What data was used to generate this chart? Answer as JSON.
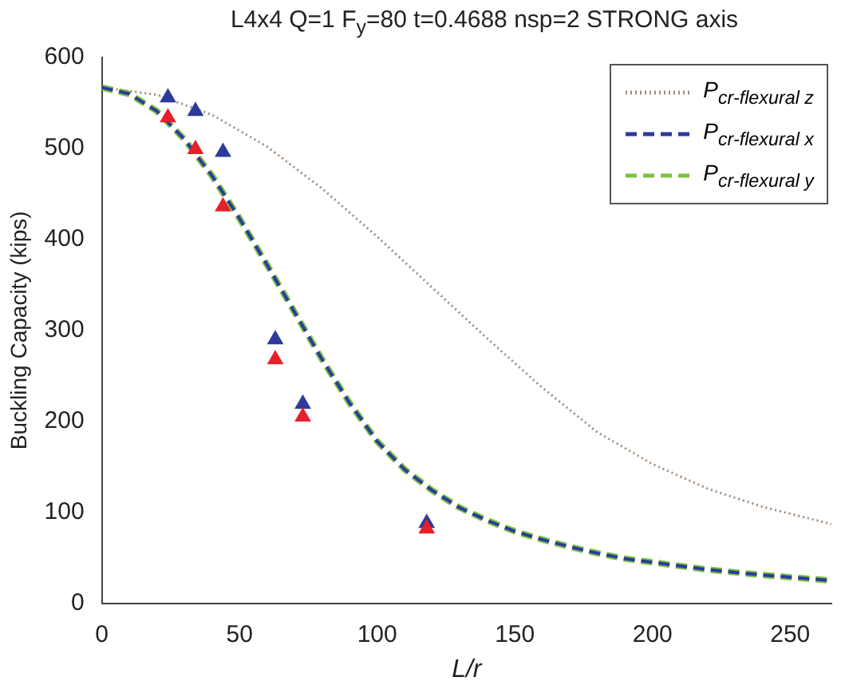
{
  "chart_data": {
    "type": "line",
    "title": "L4x4 Q=1 F$_{y}$=80 t=0.4688 nsp=2 STRONG axis",
    "xlabel": "L/r",
    "ylabel": "Buckling Capacity (kips)",
    "xlim": [
      0,
      265
    ],
    "xticks": [
      0,
      50,
      100,
      150,
      200,
      250
    ],
    "ylim": [
      0,
      600
    ],
    "yticks": [
      0,
      100,
      200,
      300,
      400,
      500,
      600
    ],
    "grid": false,
    "legend": "top right",
    "series": [
      {
        "name": "P$_{cr-flexural z}$",
        "color": "#a08c7c",
        "line_style": "dotted",
        "marker": "none",
        "x": [
          0,
          20,
          40,
          60,
          80,
          100,
          120,
          140,
          160,
          180,
          200,
          220,
          240,
          265
        ],
        "values": [
          567,
          559,
          537,
          502,
          456,
          403,
          347,
          291,
          237,
          188,
          153,
          126,
          106,
          87
        ]
      },
      {
        "name": "P$_{cr-flexural y}$",
        "color": "#7cc242",
        "line_style": "dashed",
        "marker": "none",
        "x": [
          0,
          10,
          20,
          30,
          40,
          50,
          60,
          70,
          80,
          90,
          100,
          110,
          120,
          130,
          140,
          150,
          160,
          170,
          180,
          190,
          200,
          220,
          240,
          265
        ],
        "values": [
          567,
          560,
          541,
          510,
          470,
          423,
          372,
          320,
          268,
          220,
          178,
          147,
          124,
          105,
          91,
          79,
          70,
          62,
          55,
          49,
          45,
          37,
          31,
          25
        ]
      },
      {
        "name": "P$_{cr-flexural x}$",
        "color": "#2b3a9e",
        "line_style": "dashed",
        "marker": "none",
        "x": [
          0,
          10,
          20,
          30,
          40,
          50,
          60,
          70,
          80,
          90,
          100,
          110,
          120,
          130,
          140,
          150,
          160,
          170,
          180,
          190,
          200,
          220,
          240,
          265
        ],
        "values": [
          567,
          560,
          541,
          510,
          470,
          423,
          372,
          320,
          268,
          220,
          178,
          147,
          124,
          105,
          91,
          79,
          70,
          62,
          55,
          49,
          45,
          37,
          31,
          25
        ]
      },
      {
        "type": "scatter",
        "color": "#2d3a9a",
        "marker": "triangle",
        "x": [
          24,
          34,
          44,
          63,
          73,
          118
        ],
        "values": [
          556,
          541,
          496,
          290,
          219,
          88
        ]
      },
      {
        "type": "scatter",
        "color": "#e8202a",
        "marker": "triangle",
        "x": [
          24,
          34,
          44,
          63,
          73,
          118
        ],
        "values": [
          534,
          499,
          436,
          268,
          205,
          82
        ]
      }
    ]
  }
}
